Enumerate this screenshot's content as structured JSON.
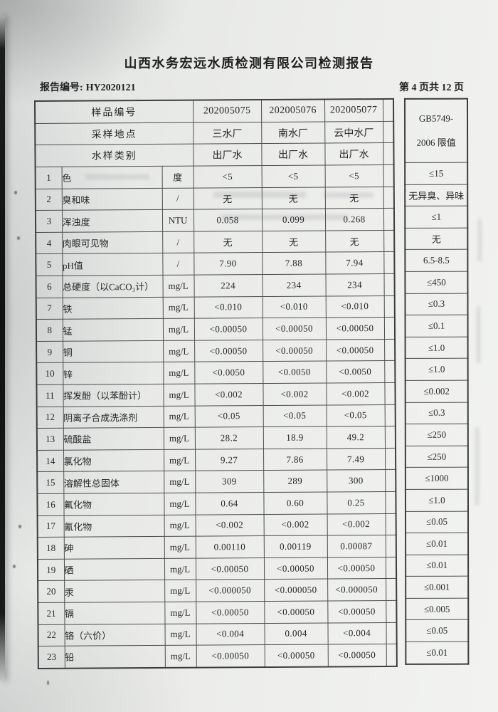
{
  "page": {
    "title": "山西水务宏远水质检测有限公司检测报告",
    "report_no_label": "报告编号:",
    "report_no": "HY2020121",
    "page_indicator": "第 4 页共 12 页"
  },
  "colors": {
    "paper": "#ecedeb",
    "ink": "#282828",
    "table_border": "#4d4d4d",
    "scan_band": "#151515"
  },
  "table": {
    "header": {
      "sample_no_label": "样品编号",
      "sample_nos": [
        "202005075",
        "202005076",
        "202005077"
      ],
      "location_label": "采样地点",
      "locations": [
        "三水厂",
        "南水厂",
        "云中水厂"
      ],
      "category_label": "水样类别",
      "categories": [
        "出厂水",
        "出厂水",
        "出厂水"
      ],
      "limit_header_line1": "GB5749-",
      "limit_header_line2": "2006 限值"
    },
    "rows": [
      {
        "no": "1",
        "param": "色",
        "unit": "度",
        "v1": "<5",
        "v2": "<5",
        "v3": "<5",
        "limit": "≤15"
      },
      {
        "no": "2",
        "param": "臭和味",
        "unit": "/",
        "v1": "无",
        "v2": "无",
        "v3": "无",
        "limit": "无异臭、异味"
      },
      {
        "no": "3",
        "param": "浑浊度",
        "unit": "NTU",
        "v1": "0.058",
        "v2": "0.099",
        "v3": "0.268",
        "limit": "≤1"
      },
      {
        "no": "4",
        "param": "肉眼可见物",
        "unit": "/",
        "v1": "无",
        "v2": "无",
        "v3": "无",
        "limit": "无"
      },
      {
        "no": "5",
        "param": "pH值",
        "unit": "/",
        "v1": "7.90",
        "v2": "7.88",
        "v3": "7.94",
        "limit": "6.5-8.5"
      },
      {
        "no": "6",
        "param": "总硬度（以CaCO₃计）",
        "unit": "mg/L",
        "v1": "224",
        "v2": "234",
        "v3": "234",
        "limit": "≤450"
      },
      {
        "no": "7",
        "param": "铁",
        "unit": "mg/L",
        "v1": "<0.010",
        "v2": "<0.010",
        "v3": "<0.010",
        "limit": "≤0.3"
      },
      {
        "no": "8",
        "param": "锰",
        "unit": "mg/L",
        "v1": "<0.00050",
        "v2": "<0.00050",
        "v3": "<0.00050",
        "limit": "≤0.1"
      },
      {
        "no": "9",
        "param": "铜",
        "unit": "mg/L",
        "v1": "<0.00050",
        "v2": "<0.00050",
        "v3": "<0.00050",
        "limit": "≤1.0"
      },
      {
        "no": "10",
        "param": "锌",
        "unit": "mg/L",
        "v1": "<0.0050",
        "v2": "<0.0050",
        "v3": "<0.0050",
        "limit": "≤1.0"
      },
      {
        "no": "11",
        "param": "挥发酚（以苯酚计）",
        "unit": "mg/L",
        "v1": "<0.002",
        "v2": "<0.002",
        "v3": "<0.002",
        "limit": "≤0.002"
      },
      {
        "no": "12",
        "param": "阴离子合成洗涤剂",
        "unit": "mg/L",
        "v1": "<0.05",
        "v2": "<0.05",
        "v3": "<0.05",
        "limit": "≤0.3"
      },
      {
        "no": "13",
        "param": "硫酸盐",
        "unit": "mg/L",
        "v1": "28.2",
        "v2": "18.9",
        "v3": "49.2",
        "limit": "≤250"
      },
      {
        "no": "14",
        "param": "氯化物",
        "unit": "mg/L",
        "v1": "9.27",
        "v2": "7.86",
        "v3": "7.49",
        "limit": "≤250"
      },
      {
        "no": "15",
        "param": "溶解性总固体",
        "unit": "mg/L",
        "v1": "309",
        "v2": "289",
        "v3": "300",
        "limit": "≤1000"
      },
      {
        "no": "16",
        "param": "氟化物",
        "unit": "mg/L",
        "v1": "0.64",
        "v2": "0.60",
        "v3": "0.25",
        "limit": "≤1.0"
      },
      {
        "no": "17",
        "param": "氰化物",
        "unit": "mg/L",
        "v1": "<0.002",
        "v2": "<0.002",
        "v3": "<0.002",
        "limit": "≤0.05"
      },
      {
        "no": "18",
        "param": "砷",
        "unit": "mg/L",
        "v1": "0.00110",
        "v2": "0.00119",
        "v3": "0.00087",
        "limit": "≤0.01"
      },
      {
        "no": "19",
        "param": "硒",
        "unit": "mg/L",
        "v1": "<0.00050",
        "v2": "<0.00050",
        "v3": "<0.00050",
        "limit": "≤0.01"
      },
      {
        "no": "20",
        "param": "汞",
        "unit": "mg/L",
        "v1": "<0.000050",
        "v2": "<0.000050",
        "v3": "<0.000050",
        "limit": "≤0.001"
      },
      {
        "no": "21",
        "param": "镉",
        "unit": "mg/L",
        "v1": "<0.00050",
        "v2": "<0.00050",
        "v3": "<0.00050",
        "limit": "≤0.005"
      },
      {
        "no": "22",
        "param": "铬（六价）",
        "unit": "mg/L",
        "v1": "<0.004",
        "v2": "0.004",
        "v3": "<0.004",
        "limit": "≤0.05"
      },
      {
        "no": "23",
        "param": "铅",
        "unit": "mg/L",
        "v1": "<0.00050",
        "v2": "<0.00050",
        "v3": "<0.00050",
        "limit": "≤0.01"
      }
    ]
  }
}
